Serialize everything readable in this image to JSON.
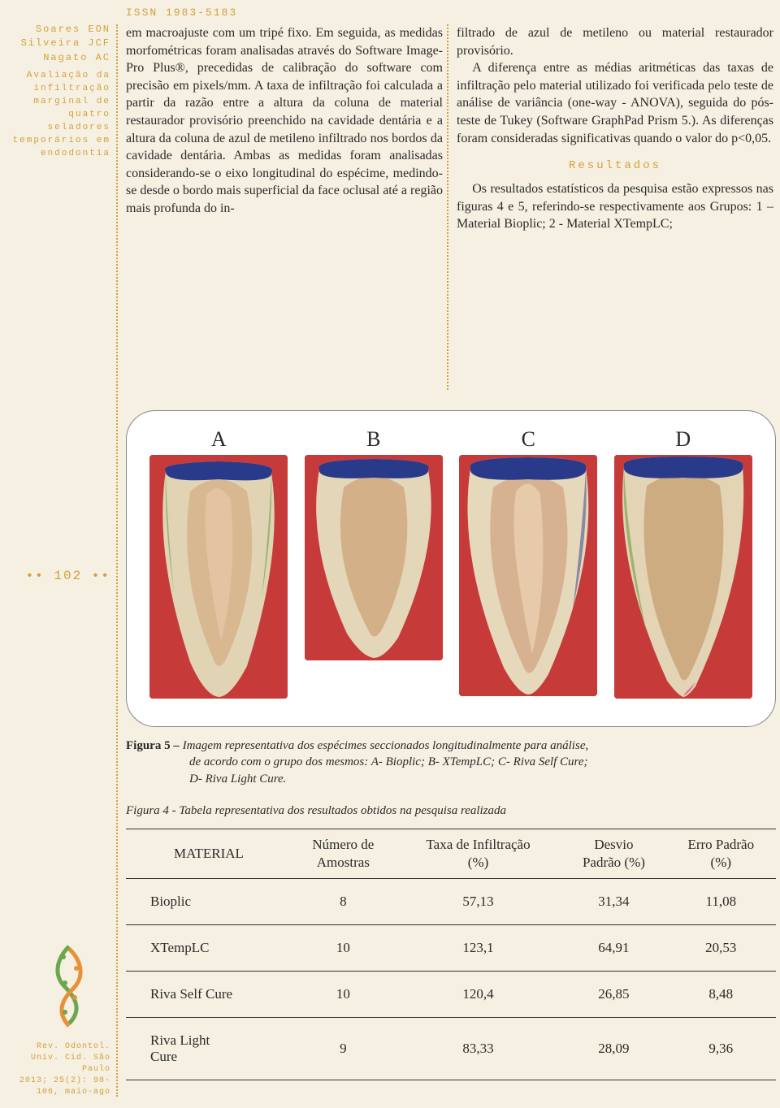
{
  "issn": "ISSN 1983-5183",
  "authors": "Soares EON\nSilveira JCF\nNagato AC",
  "subtitle": "Avaliação da infiltração marginal de quatro seladores temporários em endodontia",
  "col_left": "em macroajuste com um tripé fixo. Em seguida, as medidas morfométricas foram analisadas através do Software Image-Pro Plus®, precedidas de calibração do software com precisão em pixels/mm. A taxa de infiltração foi calculada a partir da razão entre a altura da coluna de material restaurador provisório preenchido na cavidade dentária e a altura da coluna de azul de metileno infiltrado nos bordos da cavidade dentária. Ambas as medidas foram analisadas considerando-se o eixo longitudinal do espécime, medindo-se desde o bordo mais superficial da face oclusal até a região mais profunda do in-",
  "col_right_p1": "filtrado de azul de metileno ou material restaurador provisório.",
  "col_right_p2": "A diferença entre as médias aritméticas das taxas de infiltração pelo material utilizado foi verificada pelo teste de análise de variância (one-way - ANOVA), seguida do pós-teste de Tukey (Software GraphPad Prism 5.). As diferenças foram consideradas significativas quando o valor do p<0,05.",
  "results_heading": "Resultados",
  "col_right_p3": "Os resultados estatísticos da pesquisa estão expressos nas figuras 4 e 5, referindo-se respectivamente aos Grupos: 1 – Material Bioplic; 2 - Material XTempLC;",
  "page_number": "•• 102 ••",
  "fig_labels": [
    "A",
    "B",
    "C",
    "D"
  ],
  "fig5_lead": "Figura 5 – ",
  "fig5_body": "Imagem representativa dos espécimes seccionados longitudinalmente para análise, de acordo com o grupo dos mesmos: A- Bioplic; B- XTempLC; C- Riva Self Cure; D- Riva Light Cure.",
  "fig4_caption": "Figura 4 - Tabela representativa dos resultados obtidos na pesquisa realizada",
  "table": {
    "headers": [
      "MATERIAL",
      "Número de Amostras",
      "Taxa de Infiltração (%)",
      "Desvio Padrão (%)",
      "Erro Padrão (%)"
    ],
    "rows": [
      [
        "Bioplic",
        "8",
        "57,13",
        "31,34",
        "11,08"
      ],
      [
        "XTempLC",
        "10",
        "123,1",
        "64,91",
        "20,53"
      ],
      [
        "Riva Self Cure",
        "10",
        "120,4",
        "26,85",
        "8,48"
      ],
      [
        "Riva Light Cure",
        "9",
        "83,33",
        "28,09",
        "9,36"
      ]
    ]
  },
  "footer": "Rev. Odontol. Univ. Cid. São Paulo\n2013; 25(2): 98-106, maio-ago",
  "colors": {
    "accent": "#d4a03c",
    "bg": "#f5f0e1",
    "tooth_bg": "#c63a3a",
    "tooth_body": "#e8dcc0",
    "tooth_inner": "#d0a878",
    "tooth_blue": "#2a3a8a"
  },
  "tooth_heights": [
    300,
    253,
    297,
    300
  ]
}
